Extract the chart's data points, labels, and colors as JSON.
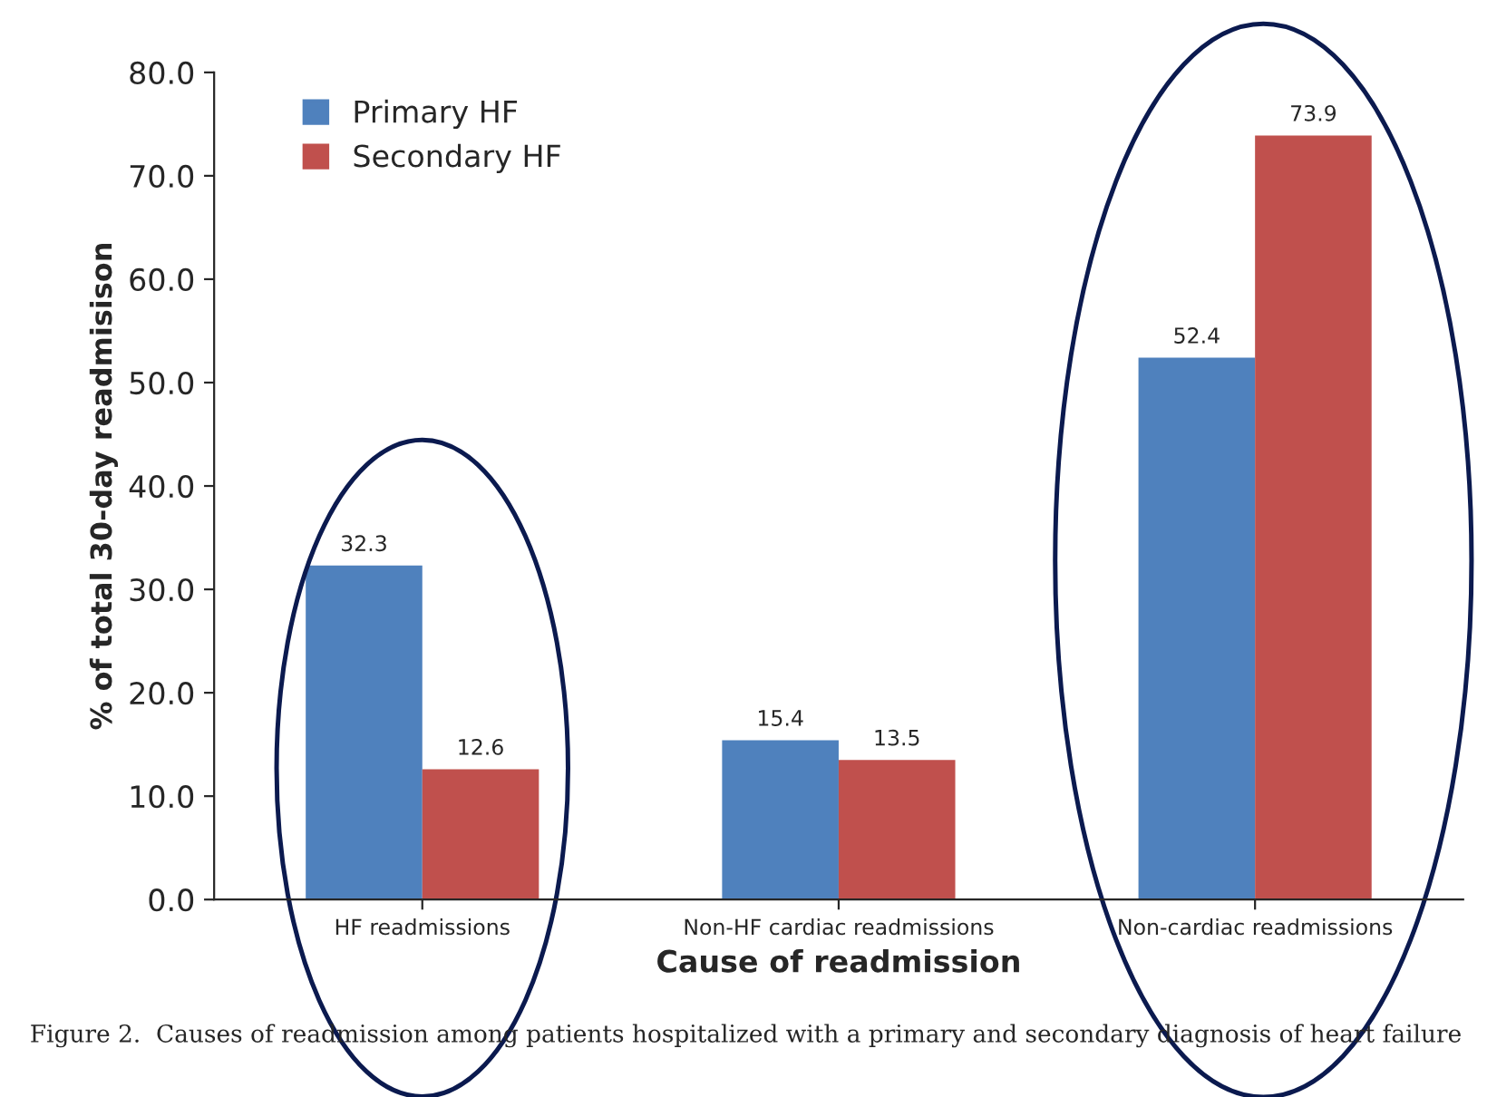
{
  "chart_data": {
    "type": "bar",
    "xlabel": "Cause of readmission",
    "ylabel": "% of total 30-day readmisison",
    "categories": [
      "HF readmissions",
      "Non-HF cardiac readmissions",
      "Non-cardiac readmissions"
    ],
    "series": [
      {
        "name": "Primary HF",
        "color": "#4f81bd",
        "values": [
          32.3,
          15.4,
          52.4
        ]
      },
      {
        "name": "Secondary HF",
        "color": "#c0504d",
        "values": [
          12.6,
          13.5,
          73.9
        ]
      }
    ],
    "ylim": [
      0,
      80
    ],
    "yticks": [
      {
        "value": 0,
        "label": "0.0"
      },
      {
        "value": 10,
        "label": "10.0"
      },
      {
        "value": 20,
        "label": "20.0"
      },
      {
        "value": 30,
        "label": "30.0"
      },
      {
        "value": 40,
        "label": "40.0"
      },
      {
        "value": 50,
        "label": "50.0"
      },
      {
        "value": 60,
        "label": "60.0"
      },
      {
        "value": 70,
        "label": "70.0"
      },
      {
        "value": 80,
        "label": "80.0"
      }
    ],
    "data_labels": true,
    "grid": false,
    "legend": "top left",
    "annotations": [
      "Figure 2.  Causes of readmission among patients hospitalized with a primary and secondary diagnosis of heart failure"
    ]
  }
}
